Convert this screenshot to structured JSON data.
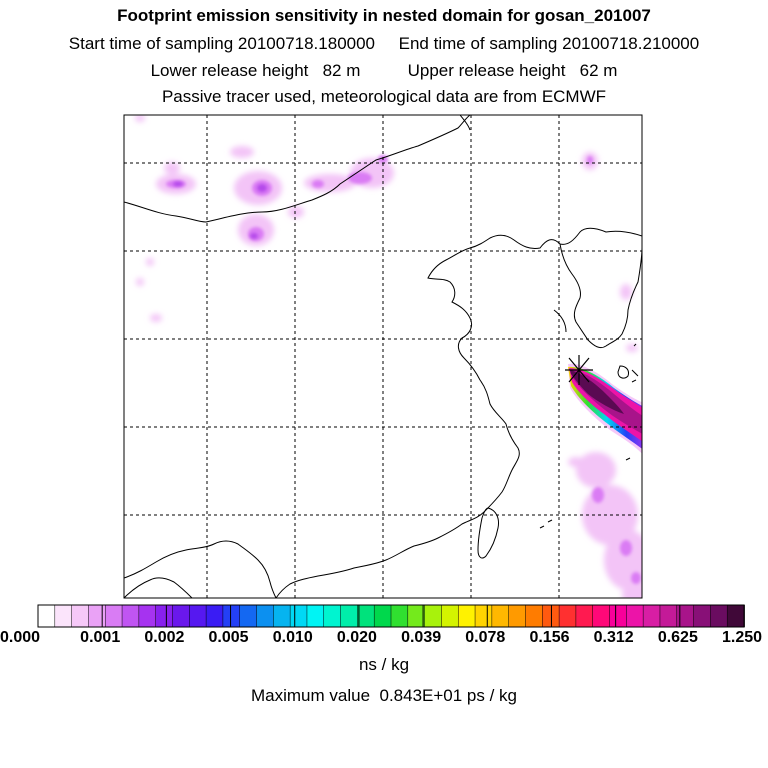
{
  "header": {
    "title": "Footprint emission sensitivity in nested domain for gosan_201007",
    "start_label": "Start time of sampling",
    "start_value": "20100718.180000",
    "end_label": "End time of sampling",
    "end_value": "20100718.210000",
    "lower_label": "Lower release height",
    "lower_value": "82 m",
    "upper_label": "Upper release height",
    "upper_value": "62 m",
    "tracer_note": "Passive tracer used, meteorological data are from ECMWF"
  },
  "colorbar": {
    "labels": [
      "0.000",
      "0.001",
      "0.002",
      "0.005",
      "0.010",
      "0.020",
      "0.039",
      "0.078",
      "0.156",
      "0.312",
      "0.625",
      "1.250"
    ],
    "colors": [
      "#ffffff",
      "#fbe4fb",
      "#f6c8f8",
      "#eaa2f6",
      "#d97cf4",
      "#c055f2",
      "#a633f0",
      "#8820ee",
      "#6a18ec",
      "#5618f0",
      "#3a1cf4",
      "#2440f6",
      "#1468f2",
      "#0c90f0",
      "#06b4f0",
      "#00d8f4",
      "#00f4f4",
      "#00f4d0",
      "#00eeaa",
      "#00e27c",
      "#00d84c",
      "#30e030",
      "#74ea1c",
      "#a8f20c",
      "#d4f400",
      "#fff200",
      "#ffd400",
      "#ffb800",
      "#ff9a00",
      "#ff7c00",
      "#ff5a10",
      "#ff3030",
      "#ff1a50",
      "#ff0878",
      "#f8009a",
      "#ec14a8",
      "#d81ea4",
      "#c41a98",
      "#a8148a",
      "#881077",
      "#6a0c60",
      "#400838"
    ],
    "units": "ns / kg"
  },
  "max_value": {
    "label": "Maximum value",
    "value": "0.843E+01 ps / kg"
  },
  "release_point_marker": "star"
}
